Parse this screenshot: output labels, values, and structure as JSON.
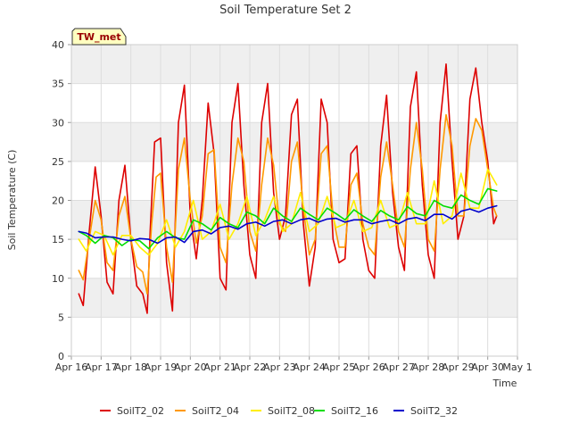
{
  "chart_data": {
    "type": "line",
    "title": "Soil Temperature Set 2",
    "xlabel": "Time",
    "ylabel": "Soil Temperature (C)",
    "annotation": "TW_met",
    "xlim": [
      16,
      31
    ],
    "ylim": [
      0,
      40
    ],
    "yticks": [
      0,
      5,
      10,
      15,
      20,
      25,
      30,
      35,
      40
    ],
    "xticks": [
      {
        "day": 16,
        "label": "Apr 16"
      },
      {
        "day": 17,
        "label": "Apr 17"
      },
      {
        "day": 18,
        "label": "Apr 18"
      },
      {
        "day": 19,
        "label": "Apr 19"
      },
      {
        "day": 20,
        "label": "Apr 20"
      },
      {
        "day": 21,
        "label": "Apr 21"
      },
      {
        "day": 22,
        "label": "Apr 22"
      },
      {
        "day": 23,
        "label": "Apr 23"
      },
      {
        "day": 24,
        "label": "Apr 24"
      },
      {
        "day": 25,
        "label": "Apr 25"
      },
      {
        "day": 26,
        "label": "Apr 26"
      },
      {
        "day": 27,
        "label": "Apr 27"
      },
      {
        "day": 28,
        "label": "Apr 28"
      },
      {
        "day": 29,
        "label": "Apr 29"
      },
      {
        "day": 30,
        "label": "Apr 30"
      },
      {
        "day": 31,
        "label": "May 1"
      }
    ],
    "grid": true,
    "legend_position": "bottom",
    "series": [
      {
        "name": "SoilT2_02",
        "color": "#dd0000",
        "x": [
          16.25,
          16.4,
          16.6,
          16.8,
          17.0,
          17.2,
          17.4,
          17.6,
          17.8,
          18.0,
          18.2,
          18.4,
          18.55,
          18.65,
          18.8,
          19.0,
          19.2,
          19.4,
          19.6,
          19.8,
          20.0,
          20.2,
          20.4,
          20.6,
          20.8,
          21.0,
          21.2,
          21.4,
          21.6,
          21.8,
          22.0,
          22.2,
          22.4,
          22.6,
          22.8,
          23.0,
          23.2,
          23.4,
          23.6,
          23.8,
          24.0,
          24.2,
          24.4,
          24.6,
          24.8,
          25.0,
          25.2,
          25.4,
          25.6,
          25.8,
          26.0,
          26.2,
          26.4,
          26.6,
          26.8,
          27.0,
          27.2,
          27.4,
          27.6,
          27.8,
          28.0,
          28.2,
          28.4,
          28.6,
          28.8,
          29.0,
          29.2,
          29.4,
          29.6,
          29.8,
          30.0,
          30.2,
          30.3
        ],
        "y": [
          8,
          6.5,
          16,
          24.3,
          18,
          9.5,
          8,
          20,
          24.5,
          15,
          9,
          8,
          5.5,
          16,
          27.5,
          28,
          12,
          5.8,
          30,
          34.8,
          18,
          12.5,
          20,
          32.5,
          26,
          10,
          8.5,
          30,
          35,
          22,
          13,
          10,
          30,
          35,
          21,
          15,
          18,
          31,
          33,
          17,
          9,
          14,
          33,
          30,
          15,
          12,
          12.5,
          26,
          27,
          15,
          11,
          10,
          27,
          33.5,
          21,
          14,
          11,
          32,
          36.5,
          22,
          13,
          10,
          30,
          37.5,
          25,
          15,
          18,
          33,
          37,
          30,
          25,
          17,
          18
        ]
      },
      {
        "name": "SoilT2_04",
        "color": "#ff9900",
        "x": [
          16.25,
          16.4,
          16.6,
          16.8,
          17.0,
          17.2,
          17.4,
          17.6,
          17.8,
          18.0,
          18.2,
          18.4,
          18.55,
          18.7,
          18.85,
          19.0,
          19.2,
          19.4,
          19.6,
          19.8,
          20.0,
          20.2,
          20.4,
          20.6,
          20.8,
          21.0,
          21.2,
          21.4,
          21.6,
          21.8,
          22.0,
          22.2,
          22.4,
          22.6,
          22.8,
          23.0,
          23.2,
          23.4,
          23.6,
          23.8,
          24.0,
          24.2,
          24.4,
          24.6,
          24.8,
          25.0,
          25.2,
          25.4,
          25.6,
          25.8,
          26.0,
          26.2,
          26.4,
          26.6,
          26.8,
          27.0,
          27.2,
          27.4,
          27.6,
          27.8,
          28.0,
          28.2,
          28.4,
          28.6,
          28.8,
          29.0,
          29.2,
          29.4,
          29.6,
          29.8,
          30.0,
          30.2,
          30.3
        ],
        "y": [
          11,
          9.8,
          15,
          20,
          17.5,
          12,
          11,
          18,
          20.5,
          15,
          11.5,
          10.8,
          8,
          17,
          23,
          23.5,
          14,
          9.5,
          24,
          28,
          20,
          14.5,
          18,
          26,
          26.5,
          14,
          12,
          22,
          28,
          25,
          16,
          13.5,
          22,
          28,
          24.5,
          17,
          16,
          25,
          27.5,
          19,
          13,
          15,
          26,
          27,
          18,
          14,
          14,
          22,
          23.5,
          17,
          14,
          13,
          23,
          27.5,
          22,
          16,
          14,
          24,
          30,
          24,
          15,
          13.5,
          24,
          31,
          27,
          18,
          18,
          27,
          30.5,
          29,
          24,
          19,
          18
        ]
      },
      {
        "name": "SoilT2_08",
        "color": "#ffee00",
        "x": [
          16.25,
          16.5,
          16.8,
          17.1,
          17.4,
          17.7,
          18.0,
          18.3,
          18.6,
          18.9,
          19.2,
          19.5,
          19.8,
          20.1,
          20.4,
          20.7,
          21.0,
          21.3,
          21.6,
          21.9,
          22.2,
          22.5,
          22.8,
          23.1,
          23.4,
          23.7,
          24.0,
          24.3,
          24.6,
          24.9,
          25.2,
          25.5,
          25.8,
          26.1,
          26.4,
          26.7,
          27.0,
          27.3,
          27.6,
          27.9,
          28.2,
          28.5,
          28.8,
          29.1,
          29.4,
          29.7,
          30.0,
          30.3
        ],
        "y": [
          15,
          13.5,
          16,
          15.5,
          13,
          15.5,
          15.5,
          14,
          13,
          14.5,
          17.5,
          14,
          16,
          20,
          15,
          16,
          19.5,
          15,
          17,
          20.5,
          15.5,
          17.5,
          20.5,
          16,
          17,
          21,
          16,
          17,
          20.5,
          16.5,
          17,
          20,
          16,
          16.5,
          20,
          16.5,
          17,
          21,
          17,
          17,
          22.5,
          17,
          18,
          23.5,
          19,
          19,
          24,
          22
        ]
      },
      {
        "name": "SoilT2_16",
        "color": "#00dd00",
        "x": [
          16.25,
          16.5,
          16.8,
          17.1,
          17.4,
          17.7,
          18.0,
          18.3,
          18.6,
          18.9,
          19.2,
          19.5,
          19.8,
          20.1,
          20.4,
          20.7,
          21.0,
          21.3,
          21.6,
          21.9,
          22.2,
          22.5,
          22.8,
          23.1,
          23.4,
          23.7,
          24.0,
          24.3,
          24.6,
          24.9,
          25.2,
          25.5,
          25.8,
          26.1,
          26.4,
          26.7,
          27.0,
          27.3,
          27.6,
          27.9,
          28.2,
          28.5,
          28.8,
          29.1,
          29.4,
          29.7,
          30.0,
          30.3
        ],
        "y": [
          16,
          15.5,
          14.5,
          15.5,
          15.2,
          14.2,
          15,
          14.8,
          13.8,
          15.2,
          16,
          15.2,
          15,
          17.5,
          17,
          16.2,
          17.8,
          17,
          16.5,
          18.5,
          18,
          17,
          19,
          18,
          17.3,
          19,
          18.2,
          17.5,
          19,
          18.3,
          17.5,
          18.8,
          18,
          17.3,
          18.7,
          18,
          17.5,
          19.2,
          18.3,
          18,
          20,
          19.3,
          19,
          20.7,
          20,
          19.5,
          21.5,
          21.2
        ]
      },
      {
        "name": "SoilT2_32",
        "color": "#0000cc",
        "x": [
          16.25,
          16.5,
          16.8,
          17.1,
          17.4,
          17.7,
          18.0,
          18.3,
          18.6,
          18.9,
          19.2,
          19.5,
          19.8,
          20.1,
          20.4,
          20.7,
          21.0,
          21.3,
          21.6,
          21.9,
          22.2,
          22.5,
          22.8,
          23.1,
          23.4,
          23.7,
          24.0,
          24.3,
          24.6,
          24.9,
          25.2,
          25.5,
          25.8,
          26.1,
          26.4,
          26.7,
          27.0,
          27.3,
          27.6,
          27.9,
          28.2,
          28.5,
          28.8,
          29.1,
          29.4,
          29.7,
          30.0,
          30.3
        ],
        "y": [
          16,
          15.8,
          15.2,
          15.3,
          15.3,
          15,
          14.8,
          15.1,
          15,
          14.5,
          15.2,
          15.3,
          14.6,
          16,
          16.2,
          15.7,
          16.5,
          16.7,
          16.3,
          17,
          17.2,
          16.7,
          17.3,
          17.5,
          17,
          17.5,
          17.7,
          17.2,
          17.6,
          17.7,
          17.2,
          17.5,
          17.5,
          17,
          17.3,
          17.5,
          17,
          17.6,
          17.8,
          17.4,
          18.2,
          18.2,
          17.6,
          18.6,
          18.9,
          18.5,
          19,
          19.3
        ]
      }
    ]
  }
}
